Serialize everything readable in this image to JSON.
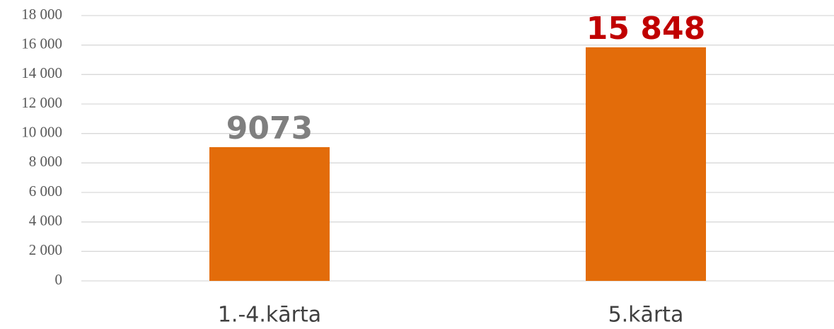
{
  "chart_data": {
    "type": "bar",
    "categories": [
      "1.-4.kārta",
      "5.kārta"
    ],
    "values": [
      9073,
      15848
    ],
    "value_labels": [
      "9073",
      "15 848"
    ],
    "value_label_colors": [
      "#7f7f7f",
      "#c00000"
    ],
    "color": "#e36c0a",
    "ylim": [
      0,
      18000
    ],
    "yticks": [
      0,
      {
        "value": 2000,
        "label": "2 000"
      },
      {
        "value": 4000,
        "label": "4 000"
      },
      {
        "value": 6000,
        "label": "6 000"
      },
      {
        "value": 8000,
        "label": "8 000"
      },
      {
        "value": 10000,
        "label": "10 000"
      },
      {
        "value": 12000,
        "label": "12 000"
      },
      {
        "value": 14000,
        "label": "14 000"
      },
      {
        "value": 16000,
        "label": "16 000"
      },
      {
        "value": 18000,
        "label": "18 000"
      }
    ],
    "grid": true
  }
}
